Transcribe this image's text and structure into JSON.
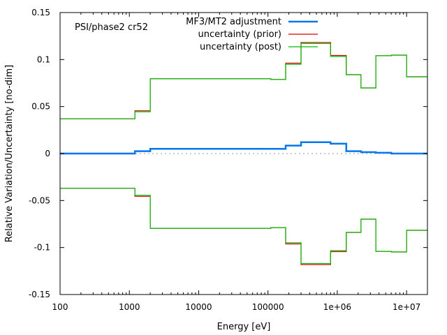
{
  "chart_data": {
    "type": "line",
    "subtype": "step",
    "annotation": "PSI/phase2 cr52",
    "xlabel": "Energy [eV]",
    "ylabel": "Relative Variation/Uncertainty [no-dim]",
    "xscale": "log",
    "xlim": [
      100,
      20000000
    ],
    "ylim": [
      -0.15,
      0.15
    ],
    "xticks": [
      {
        "value": 100,
        "label": "100"
      },
      {
        "value": 1000,
        "label": "1000"
      },
      {
        "value": 10000,
        "label": "10000"
      },
      {
        "value": 100000,
        "label": "100000"
      },
      {
        "value": 1000000,
        "label": "1e+06"
      },
      {
        "value": 10000000,
        "label": "1e+07"
      }
    ],
    "yticks": [
      {
        "value": 0.15,
        "label": "0.15"
      },
      {
        "value": 0.1,
        "label": "0.1"
      },
      {
        "value": 0.05,
        "label": "0.05"
      },
      {
        "value": 0,
        "label": "0"
      },
      {
        "value": -0.05,
        "label": "-0.05"
      },
      {
        "value": -0.1,
        "label": "-0.1"
      },
      {
        "value": -0.15,
        "label": "-0.15"
      }
    ],
    "zero_line": true,
    "grid": false,
    "legend_position": "top-right",
    "bin_edges": [
      100,
      1200,
      2000,
      110000,
      180000,
      300000,
      800000,
      1350000,
      2200000,
      3600000,
      6000000,
      10000000,
      20000000
    ],
    "series": [
      {
        "name": "MF3/MT2 adjustment",
        "color": "#0077ee",
        "mirror": false,
        "values": [
          0.0,
          0.0025,
          0.005,
          0.005,
          0.0085,
          0.012,
          0.0105,
          0.0025,
          0.0015,
          0.0008,
          0.0,
          0.0
        ]
      },
      {
        "name": "uncertainty (prior)",
        "color": "#dd0000",
        "mirror": true,
        "values": [
          0.037,
          0.0455,
          0.0795,
          0.0788,
          0.0962,
          0.1182,
          0.1043,
          0.0839,
          0.0698,
          0.104,
          0.1047,
          0.0817
        ]
      },
      {
        "name": "uncertainty (post)",
        "color": "#00bb00",
        "mirror": true,
        "values": [
          0.037,
          0.0445,
          0.0795,
          0.0788,
          0.095,
          0.117,
          0.1033,
          0.0839,
          0.0698,
          0.104,
          0.1047,
          0.0817
        ]
      }
    ]
  }
}
